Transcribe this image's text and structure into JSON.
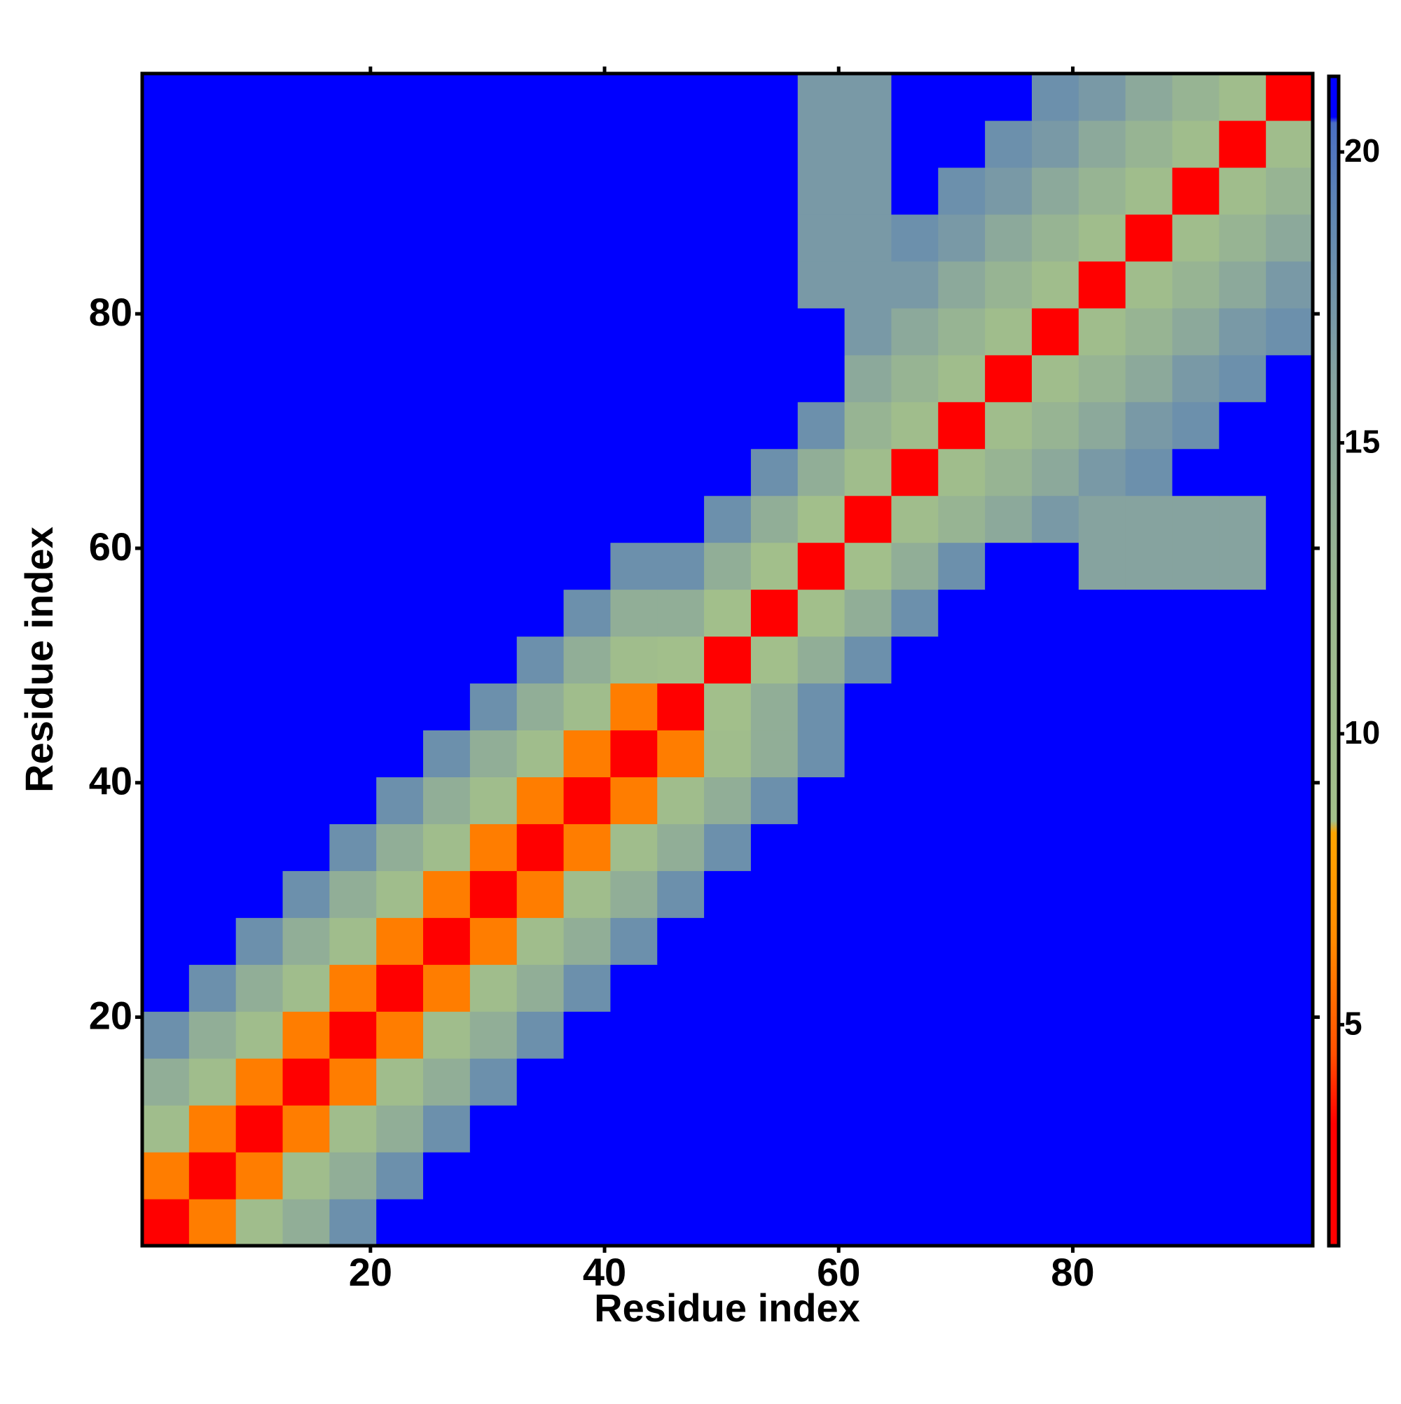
{
  "chart_data": {
    "type": "heatmap",
    "x_label": "Residue index",
    "y_label": "Residue index",
    "xlim": [
      0.5,
      100.5
    ],
    "ylim": [
      0.5,
      100.5
    ],
    "xticks": [
      20,
      40,
      60,
      80
    ],
    "yticks": [
      20,
      40,
      60,
      80
    ],
    "zlim": [
      1.2,
      21.3
    ],
    "zticks": [
      5,
      10,
      15,
      20
    ],
    "colorscale": [
      [
        1.2,
        "#ff0000"
      ],
      [
        3.3,
        "#ff0000"
      ],
      [
        4.5,
        "#ff5000"
      ],
      [
        6.5,
        "#ff8c00"
      ],
      [
        8.3,
        "#ffa500"
      ],
      [
        8.5,
        "#a3c08a"
      ],
      [
        12,
        "#9cb98f"
      ],
      [
        16,
        "#86a39f"
      ],
      [
        19,
        "#5f86b3"
      ],
      [
        20.5,
        "#4a6fc4"
      ],
      [
        20.6,
        "#0000ff"
      ],
      [
        21.3,
        "#0000ff"
      ]
    ],
    "x": [
      2.5,
      6.5,
      10.5,
      14.5,
      18.5,
      22.5,
      26.5,
      30.5,
      34.5,
      38.5,
      42.5,
      46.5,
      50.5,
      54.5,
      58.5,
      62.5,
      66.5,
      70.5,
      74.5,
      78.5,
      82.5,
      86.5,
      90.5,
      94.5,
      98.5
    ],
    "y": [
      2.5,
      6.5,
      10.5,
      14.5,
      18.5,
      22.5,
      26.5,
      30.5,
      34.5,
      38.5,
      42.5,
      46.5,
      50.5,
      54.5,
      58.5,
      62.5,
      66.5,
      70.5,
      74.5,
      78.5,
      82.5,
      86.5,
      90.5,
      94.5,
      98.5
    ],
    "z": [
      [
        2,
        6,
        10,
        14,
        18,
        21,
        21,
        21,
        21,
        21,
        21,
        21,
        21,
        21,
        21,
        21,
        21,
        21,
        21,
        21,
        21,
        21,
        21,
        21,
        21
      ],
      [
        6,
        2,
        6,
        10,
        14,
        18,
        21,
        21,
        21,
        21,
        21,
        21,
        21,
        21,
        21,
        21,
        21,
        21,
        21,
        21,
        21,
        21,
        21,
        21,
        21
      ],
      [
        10,
        6,
        2,
        6,
        10,
        14,
        18,
        21,
        21,
        21,
        21,
        21,
        21,
        21,
        21,
        21,
        21,
        21,
        21,
        21,
        21,
        21,
        21,
        21,
        21
      ],
      [
        14,
        10,
        6,
        2,
        6,
        10,
        14,
        18,
        21,
        21,
        21,
        21,
        21,
        21,
        21,
        21,
        21,
        21,
        21,
        21,
        21,
        21,
        21,
        21,
        21
      ],
      [
        18,
        14,
        10,
        6,
        2,
        6,
        10,
        14,
        18,
        21,
        21,
        21,
        21,
        21,
        21,
        21,
        21,
        21,
        21,
        21,
        21,
        21,
        21,
        21,
        21
      ],
      [
        21,
        18,
        14,
        10,
        6,
        2,
        6,
        10,
        14,
        18,
        21,
        21,
        21,
        21,
        21,
        21,
        21,
        21,
        21,
        21,
        21,
        21,
        21,
        21,
        21
      ],
      [
        21,
        21,
        18,
        14,
        10,
        6,
        2,
        6,
        10,
        14,
        18,
        21,
        21,
        21,
        21,
        21,
        21,
        21,
        21,
        21,
        21,
        21,
        21,
        21,
        21
      ],
      [
        21,
        21,
        21,
        18,
        14,
        10,
        6,
        2,
        6,
        10,
        14,
        18,
        21,
        21,
        21,
        21,
        21,
        21,
        21,
        21,
        21,
        21,
        21,
        21,
        21
      ],
      [
        21,
        21,
        21,
        21,
        18,
        14,
        10,
        6,
        2,
        6,
        10,
        14,
        18,
        21,
        21,
        21,
        21,
        21,
        21,
        21,
        21,
        21,
        21,
        21,
        21
      ],
      [
        21,
        21,
        21,
        21,
        21,
        18,
        14,
        10,
        6,
        2,
        6,
        10,
        14,
        18,
        21,
        21,
        21,
        21,
        21,
        21,
        21,
        21,
        21,
        21,
        21
      ],
      [
        21,
        21,
        21,
        21,
        21,
        21,
        18,
        14,
        10,
        6,
        2,
        6,
        10,
        14,
        18,
        21,
        21,
        21,
        21,
        21,
        21,
        21,
        21,
        21,
        21
      ],
      [
        21,
        21,
        21,
        21,
        21,
        21,
        21,
        18,
        14,
        10,
        6,
        2,
        9,
        14,
        18,
        21,
        21,
        21,
        21,
        21,
        21,
        21,
        21,
        21,
        21
      ],
      [
        21,
        21,
        21,
        21,
        21,
        21,
        21,
        21,
        18,
        14,
        10,
        9,
        2,
        9,
        14,
        18,
        21,
        21,
        21,
        21,
        21,
        21,
        21,
        21,
        21
      ],
      [
        21,
        21,
        21,
        21,
        21,
        21,
        21,
        21,
        21,
        18,
        14,
        14,
        9,
        2,
        9,
        14,
        18,
        21,
        21,
        21,
        21,
        21,
        21,
        21,
        21
      ],
      [
        21,
        21,
        21,
        21,
        21,
        21,
        21,
        21,
        21,
        21,
        18,
        18,
        14,
        9,
        2,
        9,
        14,
        18,
        21,
        21,
        16,
        16,
        16,
        16,
        21
      ],
      [
        21,
        21,
        21,
        21,
        21,
        21,
        21,
        21,
        21,
        21,
        21,
        21,
        18,
        14,
        9,
        2,
        10,
        13,
        15,
        17,
        16,
        16,
        16,
        16,
        21
      ],
      [
        21,
        21,
        21,
        21,
        21,
        21,
        21,
        21,
        21,
        21,
        21,
        21,
        21,
        18,
        14,
        10,
        2,
        10,
        13,
        15,
        17,
        18,
        21,
        21,
        21
      ],
      [
        21,
        21,
        21,
        21,
        21,
        21,
        21,
        21,
        21,
        21,
        21,
        21,
        21,
        21,
        18,
        13,
        10,
        2,
        10,
        13,
        15,
        17,
        18,
        21,
        21
      ],
      [
        21,
        21,
        21,
        21,
        21,
        21,
        21,
        21,
        21,
        21,
        21,
        21,
        21,
        21,
        21,
        15,
        13,
        10,
        2,
        10,
        13,
        15,
        17,
        18,
        21
      ],
      [
        21,
        21,
        21,
        21,
        21,
        21,
        21,
        21,
        21,
        21,
        21,
        21,
        21,
        21,
        21,
        17,
        15,
        13,
        10,
        2,
        10,
        13,
        15,
        17,
        18
      ],
      [
        21,
        21,
        21,
        21,
        21,
        21,
        21,
        21,
        21,
        21,
        21,
        21,
        21,
        21,
        17,
        17,
        17,
        15,
        13,
        10,
        2,
        10,
        13,
        15,
        17
      ],
      [
        21,
        21,
        21,
        21,
        21,
        21,
        21,
        21,
        21,
        21,
        21,
        21,
        21,
        21,
        17,
        17,
        18,
        17,
        15,
        13,
        10,
        2,
        10,
        13,
        15
      ],
      [
        21,
        21,
        21,
        21,
        21,
        21,
        21,
        21,
        21,
        21,
        21,
        21,
        21,
        21,
        17,
        17,
        21,
        18,
        17,
        15,
        13,
        10,
        2,
        10,
        13
      ],
      [
        21,
        21,
        21,
        21,
        21,
        21,
        21,
        21,
        21,
        21,
        21,
        21,
        21,
        21,
        17,
        17,
        21,
        21,
        18,
        17,
        15,
        13,
        10,
        2,
        10
      ],
      [
        21,
        21,
        21,
        21,
        21,
        21,
        21,
        21,
        21,
        21,
        21,
        21,
        21,
        21,
        17,
        17,
        21,
        21,
        21,
        18,
        17,
        15,
        13,
        10,
        2
      ]
    ]
  }
}
